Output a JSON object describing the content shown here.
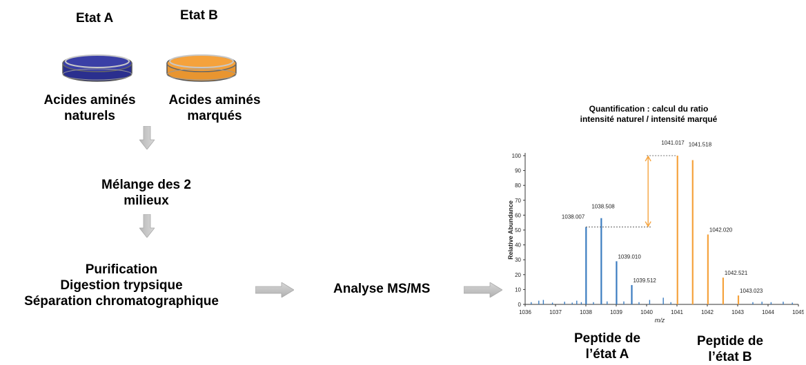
{
  "states": {
    "a": {
      "title": "Etat A",
      "line1": "Acides aminés",
      "line2": "naturels",
      "color": "#3a3fa6"
    },
    "b": {
      "title": "Etat B",
      "line1": "Acides aminés",
      "line2": "marqués",
      "color": "#f5a23c"
    }
  },
  "steps": {
    "mix_line1": "Mélange des 2",
    "mix_line2": "milieux",
    "proc_line1": "Purification",
    "proc_line2": "Digestion trypsique",
    "proc_line3": "Séparation chromatographique",
    "analysis": "Analyse MS/MS"
  },
  "spectrum_title": {
    "line1": "Quantification : calcul du ratio",
    "line2": "intensité naturel / intensité marqué"
  },
  "peptide_labels": {
    "a_line1": "Peptide de",
    "a_line2": "l’état A",
    "b_line1": "Peptide de",
    "b_line2": "l’état B"
  },
  "chart_data": {
    "type": "bar",
    "xlabel": "m/z",
    "ylabel": "Relative Abundance",
    "xlim": [
      1036,
      1045
    ],
    "ylim": [
      0,
      100
    ],
    "xticks": [
      1036,
      1037,
      1038,
      1039,
      1040,
      1041,
      1042,
      1043,
      1044,
      1045
    ],
    "yticks": [
      0,
      10,
      20,
      30,
      40,
      50,
      60,
      70,
      80,
      90,
      100
    ],
    "series": [
      {
        "color": "#3b7cc0",
        "peaks": [
          {
            "x": 1038.007,
            "y": 52,
            "label": "1038.007"
          },
          {
            "x": 1038.508,
            "y": 58,
            "label": "1038.508"
          },
          {
            "x": 1039.01,
            "y": 29,
            "label": "1039.010"
          },
          {
            "x": 1039.512,
            "y": 13,
            "label": "1039.512"
          }
        ],
        "noise": [
          {
            "x": 1036.2,
            "y": 1.5
          },
          {
            "x": 1036.45,
            "y": 2.5
          },
          {
            "x": 1036.6,
            "y": 3
          },
          {
            "x": 1036.9,
            "y": 1.2
          },
          {
            "x": 1037.3,
            "y": 1.8
          },
          {
            "x": 1037.55,
            "y": 1.2
          },
          {
            "x": 1037.7,
            "y": 2.5
          },
          {
            "x": 1037.85,
            "y": 1.5
          },
          {
            "x": 1038.25,
            "y": 1.5
          },
          {
            "x": 1038.7,
            "y": 2
          },
          {
            "x": 1039.25,
            "y": 2
          },
          {
            "x": 1039.75,
            "y": 1.5
          },
          {
            "x": 1040.1,
            "y": 3
          },
          {
            "x": 1040.55,
            "y": 4.5
          },
          {
            "x": 1040.8,
            "y": 1.5
          },
          {
            "x": 1043.5,
            "y": 1.5
          },
          {
            "x": 1043.8,
            "y": 1.8
          },
          {
            "x": 1044.1,
            "y": 1.5
          },
          {
            "x": 1044.5,
            "y": 1.8
          },
          {
            "x": 1044.8,
            "y": 1.2
          }
        ]
      },
      {
        "color": "#f5a23c",
        "peaks": [
          {
            "x": 1041.017,
            "y": 100,
            "label": "1041.017"
          },
          {
            "x": 1041.518,
            "y": 97,
            "label": "1041.518"
          },
          {
            "x": 1042.02,
            "y": 47,
            "label": "1042.020"
          },
          {
            "x": 1042.521,
            "y": 18,
            "label": "1042.521"
          },
          {
            "x": 1043.023,
            "y": 6,
            "label": "1043.023"
          }
        ]
      }
    ],
    "ratio_arrow": {
      "from": 52,
      "to": 100,
      "color": "#f5a23c"
    }
  }
}
